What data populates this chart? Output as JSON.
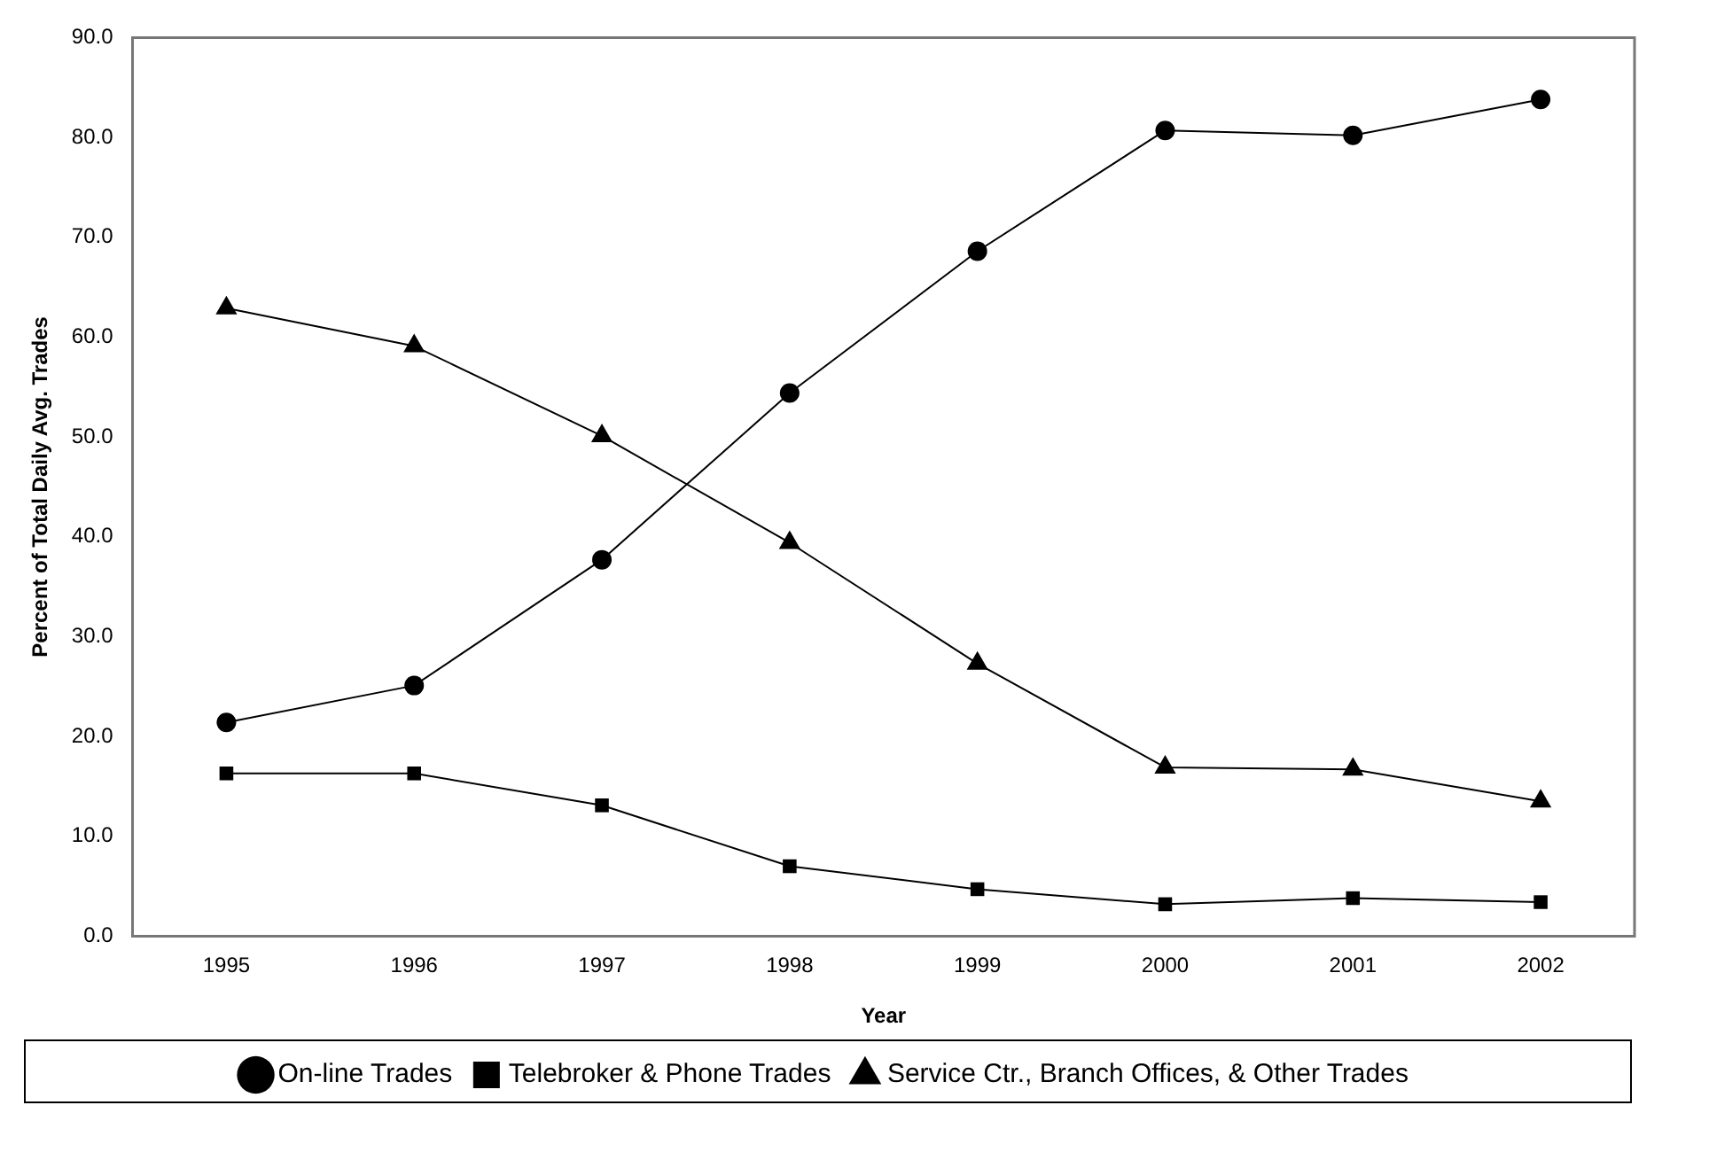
{
  "chart_data": {
    "type": "line",
    "xlabel": "Year",
    "ylabel": "Percent of Total Daily Avg. Trades",
    "categories": [
      "1995",
      "1996",
      "1997",
      "1998",
      "1999",
      "2000",
      "2001",
      "2002"
    ],
    "series": [
      {
        "name": "On-line Trades",
        "color": "#000000",
        "marker": "circle",
        "values": [
          21.4,
          25.1,
          37.7,
          54.4,
          68.6,
          80.7,
          80.2,
          83.8
        ]
      },
      {
        "name": "Telebroker & Phone Trades",
        "color": "#000000",
        "marker": "square",
        "values": [
          16.3,
          16.3,
          13.1,
          7.0,
          4.7,
          3.2,
          3.8,
          3.4
        ]
      },
      {
        "name": "Service Ctr., Branch Offices, & Other Trades",
        "color": "#000000",
        "marker": "triangle",
        "values": [
          62.9,
          59.1,
          50.1,
          39.4,
          27.3,
          16.9,
          16.7,
          13.5
        ]
      }
    ],
    "ylim": [
      0,
      90
    ],
    "yticks": [
      {
        "value": 0,
        "label": "0.0"
      },
      {
        "value": 10,
        "label": "10.0"
      },
      {
        "value": 20,
        "label": "20.0"
      },
      {
        "value": 30,
        "label": "30.0"
      },
      {
        "value": 40,
        "label": "40.0"
      },
      {
        "value": 50,
        "label": "50.0"
      },
      {
        "value": 60,
        "label": "60.0"
      },
      {
        "value": 70,
        "label": "70.0"
      },
      {
        "value": 80,
        "label": "80.0"
      },
      {
        "value": 90,
        "label": "90.0"
      }
    ],
    "grid": false,
    "legend": "bottom",
    "line_style": "solid"
  }
}
